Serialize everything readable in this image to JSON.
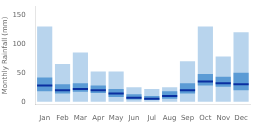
{
  "chart_data": {
    "type": "bar",
    "categories": [
      "Jan",
      "Feb",
      "Mar",
      "Apr",
      "May",
      "Jun",
      "Jul",
      "Aug",
      "Sep",
      "Oct",
      "Nov",
      "Dec"
    ],
    "series": [
      {
        "type": "bar",
        "color": "#b8d4ed",
        "low": [
          0,
          0,
          0,
          0,
          0,
          0,
          0,
          0,
          0,
          0,
          0,
          0
        ],
        "high": [
          130,
          65,
          85,
          52,
          52,
          25,
          22,
          25,
          70,
          130,
          78,
          120
        ]
      },
      {
        "type": "bar",
        "color": "#5b9bd5",
        "low": [
          18,
          14,
          17,
          15,
          8,
          4,
          3,
          5,
          14,
          28,
          26,
          20
        ],
        "high": [
          42,
          30,
          32,
          28,
          22,
          13,
          10,
          18,
          32,
          48,
          43,
          50
        ]
      },
      {
        "type": "scatter",
        "marker": "line",
        "color": "#0a2fa0",
        "values": [
          28,
          20,
          22,
          20,
          14,
          7,
          5,
          10,
          20,
          35,
          32,
          30
        ]
      }
    ],
    "ylabel": "Monthly Rainfall (mm)",
    "ylim": [
      -5,
      165
    ],
    "yticks": [
      0,
      50,
      100,
      150
    ],
    "grid": false
  }
}
